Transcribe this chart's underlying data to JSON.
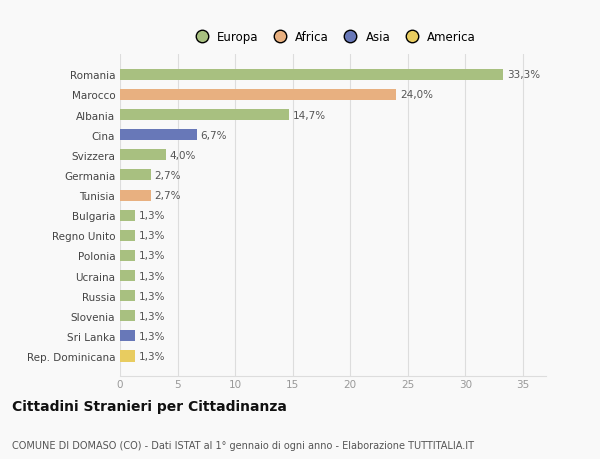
{
  "categories": [
    "Romania",
    "Marocco",
    "Albania",
    "Cina",
    "Svizzera",
    "Germania",
    "Tunisia",
    "Bulgaria",
    "Regno Unito",
    "Polonia",
    "Ucraina",
    "Russia",
    "Slovenia",
    "Sri Lanka",
    "Rep. Dominicana"
  ],
  "values": [
    33.3,
    24.0,
    14.7,
    6.7,
    4.0,
    2.7,
    2.7,
    1.3,
    1.3,
    1.3,
    1.3,
    1.3,
    1.3,
    1.3,
    1.3
  ],
  "labels": [
    "33,3%",
    "24,0%",
    "14,7%",
    "6,7%",
    "4,0%",
    "2,7%",
    "2,7%",
    "1,3%",
    "1,3%",
    "1,3%",
    "1,3%",
    "1,3%",
    "1,3%",
    "1,3%",
    "1,3%"
  ],
  "colors": [
    "#a8c080",
    "#e8b080",
    "#a8c080",
    "#6878b8",
    "#a8c080",
    "#a8c080",
    "#e8b080",
    "#a8c080",
    "#a8c080",
    "#a8c080",
    "#a8c080",
    "#a8c080",
    "#a8c080",
    "#6878b8",
    "#e8cc60"
  ],
  "legend_labels": [
    "Europa",
    "Africa",
    "Asia",
    "America"
  ],
  "legend_colors": [
    "#a8c080",
    "#e8b080",
    "#6878b8",
    "#e8cc60"
  ],
  "xlim": [
    0,
    37
  ],
  "xticks": [
    0,
    5,
    10,
    15,
    20,
    25,
    30,
    35
  ],
  "title": "Cittadini Stranieri per Cittadinanza",
  "subtitle": "COMUNE DI DOMASO (CO) - Dati ISTAT al 1° gennaio di ogni anno - Elaborazione TUTTITALIA.IT",
  "background_color": "#f9f9f9",
  "grid_color": "#dddddd",
  "bar_height": 0.55,
  "label_fontsize": 7.5,
  "ytick_fontsize": 7.5,
  "xtick_fontsize": 7.5,
  "title_fontsize": 10,
  "subtitle_fontsize": 7,
  "legend_fontsize": 8.5
}
